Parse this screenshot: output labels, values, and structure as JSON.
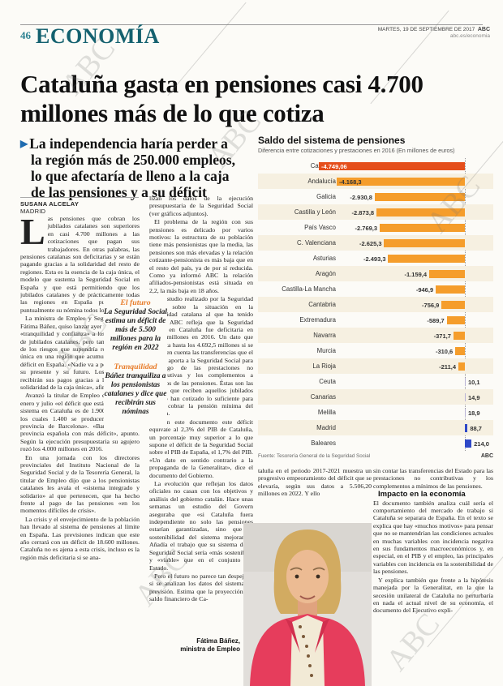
{
  "page": {
    "number": "46",
    "section": "ECONOMÍA",
    "date_line": "MARTES, 19 DE SEPTIEMBRE DE 2017",
    "brand": "ABC",
    "site": "abc.es/economia"
  },
  "headline": "Cataluña gasta en pensiones casi 4.700 millones más de lo que cotiza",
  "subhead": {
    "line1": "La independencia haría perder a",
    "line2": "la región más de 250.000 empleos,",
    "line3": "lo que afectaría de lleno a la caja",
    "line4": "de las pensiones y a su déficit"
  },
  "byline": {
    "author": "SUSANA ALCELAY",
    "location": "MADRID"
  },
  "article": {
    "dropcap": "L",
    "col1": {
      "p1": "as pensiones que cobran los jubilados catalanes son superiores en casi 4.700 millones a las cotizaciones que pagan sus trabajadores. En otras palabras, las pensiones catalanas son deficitarias y se están pagando gracias a la solidaridad del resto de regiones. Esta es la esencia de la caja única, el modelo que sustenta la Seguridad Social en España y que está permitiendo que los jubilados catalanes y de prácticamente todas las regiones en España puedan cobrar puntualmente su nómina todos los meses.",
      "p2": "La ministra de Empleo y Seguridad Social, Fátima Báñez, quiso lanzar ayer un mensaje de «tranquilidad y confianza» a los 1,5 millones de jubilados catalanes, pero también advirtió de los riesgos que supondría romper la caja única en una región que acumula el 25% del déficit en España. «Nadie va a poner en riesgo su presente y su futuro. Los pensionistas recibirán sus pagos gracias a la garantía de solidaridad de la caja única», afirmó.",
      "p3": "Avanzó la titular de Empleo que solo entre enero y julio «el déficit que está afrontando el sistema en Cataluña es de 1.900 millones, de los cuales 1.400 se producen solo en la provincia de Barcelona». «Barcelona es la provincia española con más déficit», apunto. Según la ejecución presupuestaria su agujero rozó los 4.000 millones en 2016.",
      "p4": "En una jornada con los directores provinciales del Instituto Nacional de la Seguridad Social y de la Tesorería General, la titular de Empleo dijo que a los pensionistas catalanes les avala el «sistema integrado y solidario» al que pertenecen, que ha hecho frente al pago de las pensiones «en los momentos difíciles de crisis».",
      "p5": "La crisis y el envejecimiento de la población han llevado al sistema de pensiones al límite en España. Las previsiones indican que este año cerrará con un déficit de 18.600 millones. Cataluña no es ajena a esta crisis, incluso es la región más deficitaria si se ana-"
    },
    "col2": {
      "p1": "lizan los datos de la ejecución presupuestaria de la Seguridad Social (ver gráficos adjuntos).",
      "p2": "El problema de la región con sus pensiones es delicado por varios motivos: la estructura de su población tiene más pensionistas que la media, las pensiones son más elevadas y la relación cotizante-pensionista es más baja que en el resto del país, ya de por sí reducida. Como ya informó ABC la relación afiliados-pensionistas está situada en 2,2, la más baja en 18 años.",
      "p3": "Un estudio realizado por la Seguridad Social sobre la situación en la comunidad catalana al que ha tenido acceso ABC refleja que la Seguridad Social en Cataluña fue deficitaria en 3.299 millones en 2016. Un dato que aumenta hasta los 4.692,5 millones si se tienen en cuenta las transferencias que el Estado aporta a la Seguridad Social para el pago de las prestaciones no contributivas y los complementos a mínimos de las pensiones. Éstas son las ayudas que reciben aquellos jubilados que no han cotizado lo suficiente para poder cobrar la pensión mínima del sistema.",
      "p4": "Según este documento este déficit equivale al 2,3% del PIB de Cataluña, un porcentaje muy superior a lo que supone el déficit de la Seguridad Social sobre el PIB de España, el 1,7% del PIB. «Un dato en sentido contrario a la propaganda de la Generalitat», dice el documento del Gobierno.",
      "p5": "La evolución que reflejan los datos oficiales no casan con los objetivos y análisis del gobierno catalán. Hace unas semanas un estudio del Govern aseguraba que «si Cataluña fuera independiente no solo las pensiones estarían garantizadas, sino que la sostenibilidad del sistema mejoraría». Añadía el trabajo que su sistema de la Seguridad Social sería «más sostenible» y «viable» que en el conjunto del Estado.",
      "p6": "Pero el futuro no parece tan despejado si se analizan los datos del sistema de previsión. Estima que la proyección del saldo financiero de Ca-"
    },
    "col3": {
      "p1": "taluña en el periodo 2017-2021 muestra un progresivo empeoramiento del déficit que se elevaría, según sus datos a 5.506,20 millones en 2022. Y ello"
    },
    "col4": {
      "p1": "sin contar las transferencias del Estado para las prestaciones no contributivas y los complementos a mínimos de las pensiones.",
      "heading": "Impacto en la economía",
      "p2": "El documento también analiza cuál sería el comportamiento del mercado de trabajo si Cataluña se separara de España. En el texto se explica que hay «muchos motivos» para pensar que no se mantendrían las condiciones actuales en muchas variables con incidencia negativa en sus fundamentos macroeconómicos y, en especial, en el PIB y el empleo, las principales variables con incidencia en la sostenibilidad de las pensiones.",
      "p3": "Y explica también que frente a la hipótesis manejada por la Generalitat, en la que la secesión unilateral de Cataluña no perturbaría en nada el actual nivel de su economía, el documento del Ejecutivo expli-"
    }
  },
  "callouts": [
    {
      "label": "El futuro",
      "text": "La Seguridad Social estima un déficit de más de 5.500 millones para la región en 2022"
    },
    {
      "label": "Tranquilidad",
      "text": "Báñez tranquiliza a los pensionistas catalanes y dice que recibirán sus nóminas"
    }
  ],
  "photo_caption": {
    "line1": "Fátima Báñez,",
    "line2": "ministra de Empleo"
  },
  "chart_data": {
    "type": "bar",
    "orientation": "horizontal",
    "title": "Saldo del sistema de pensiones",
    "subtitle": "Diferencia entre cotizaciones y prestaciones en 2016 (En millones de euros)",
    "categories": [
      "Cataluña",
      "Andalucía",
      "Galicia",
      "Castilla y León",
      "País Vasco",
      "C. Valenciana",
      "Asturias",
      "Aragón",
      "Castilla-La Mancha",
      "Cantabria",
      "Extremadura",
      "Navarra",
      "Murcia",
      "La Rioja",
      "Ceuta",
      "Canarias",
      "Melilla",
      "Madrid",
      "Baleares"
    ],
    "values": [
      -4749.06,
      -4168.3,
      -2930.8,
      -2873.8,
      -2769.3,
      -2625.3,
      -2493.3,
      -1159.4,
      -946.9,
      -756.9,
      -589.7,
      -371.7,
      -310.6,
      -211.4,
      10.1,
      14.9,
      18.9,
      88.7,
      214.0
    ],
    "value_labels": [
      "-4.749,06",
      "-4.168,3",
      "-2.930,8",
      "-2.873,8",
      "-2.769,3",
      "-2.625,3",
      "-2.493,3",
      "-1.159,4",
      "-946,9",
      "-756,9",
      "-589,7",
      "-371,7",
      "-310,6",
      "-211,4",
      "10,1",
      "14,9",
      "18,9",
      "88,7",
      "214,0"
    ],
    "xlim": [
      -4749.06,
      214.0
    ],
    "grid": false,
    "colors": {
      "first_negative": "#e54e1b",
      "negative": "#f59d2b",
      "positive_small": "#b9b3d6",
      "positive_large": "#2f49c8"
    },
    "source": "Fuente: Tesorería General de la Seguridad Social",
    "credit": "ABC"
  }
}
